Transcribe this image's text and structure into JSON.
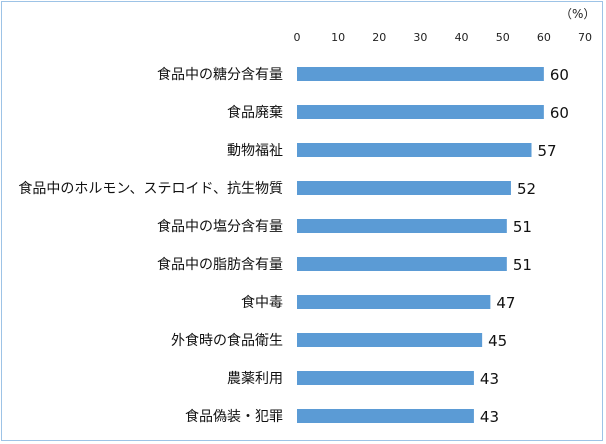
{
  "chart_data": {
    "type": "bar",
    "orientation": "horizontal",
    "unit_label": "（%）",
    "categories": [
      "食品中の糖分含有量",
      "食品廃棄",
      "動物福祉",
      "食品中のホルモン、ステロイド、抗生物質",
      "食品中の塩分含有量",
      "食品中の脂肪含有量",
      "食中毒",
      "外食時の食品衛生",
      "農薬利用",
      "食品偽装・犯罪"
    ],
    "values": [
      60,
      60,
      57,
      52,
      51,
      51,
      47,
      45,
      43,
      43
    ],
    "xlim": [
      0,
      70
    ],
    "ticks": [
      "0",
      "10",
      "20",
      "30",
      "40",
      "50",
      "60",
      "70"
    ],
    "bar_color": "#5b9bd5",
    "grid": false,
    "legend": "none"
  }
}
